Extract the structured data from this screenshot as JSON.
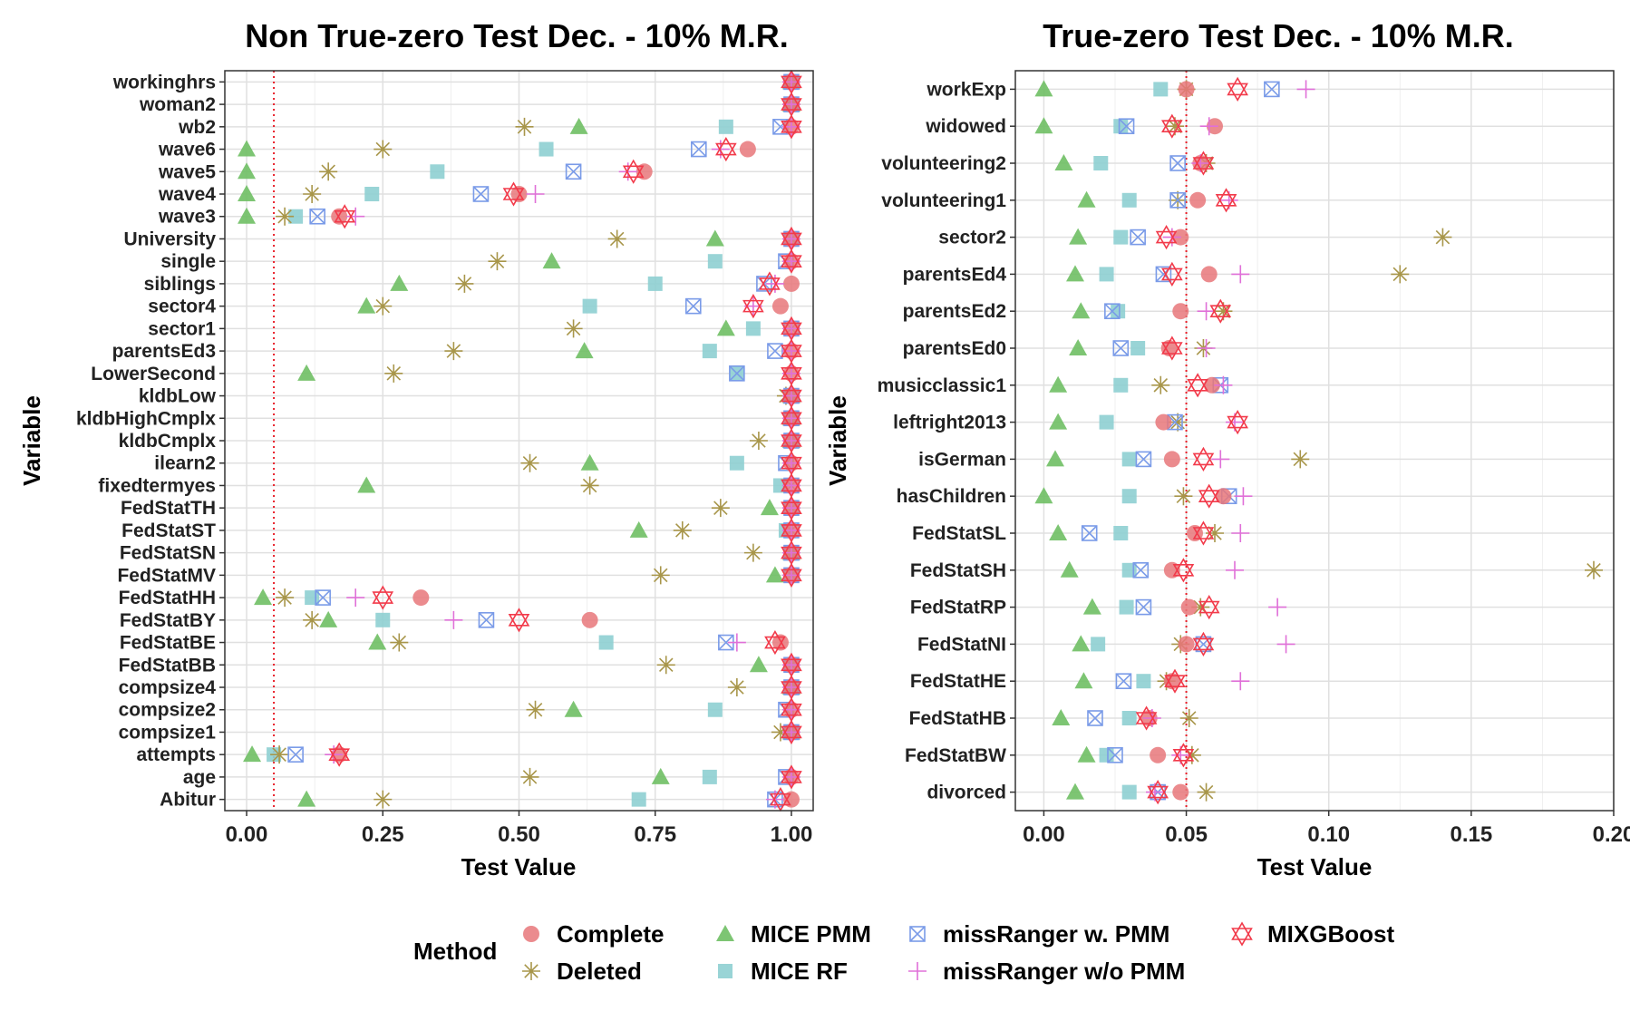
{
  "colors": {
    "complete": "#E8777A",
    "mice_pmm": "#6FBF64",
    "mice_rf": "#8ECFD2",
    "missranger_pmm": "#7A9BE8",
    "missranger_wo_pmm": "#E070D8",
    "deleted": "#A8964A",
    "mixgboost": "#F23A4A",
    "ref_line": "#E8202A"
  },
  "legend": {
    "title": "Method",
    "items": [
      {
        "key": "complete",
        "label": "Complete"
      },
      {
        "key": "deleted",
        "label": "Deleted"
      },
      {
        "key": "mice_pmm",
        "label": "MICE PMM"
      },
      {
        "key": "mice_rf",
        "label": "MICE RF"
      },
      {
        "key": "missranger_pmm",
        "label": "missRanger w. PMM"
      },
      {
        "key": "missranger_wo_pmm",
        "label": "missRanger w/o PMM"
      },
      {
        "key": "mixgboost",
        "label": "MIXGBoost"
      }
    ]
  },
  "chart_data": [
    {
      "type": "scatter",
      "title": "Non True-zero Test Dec. - 10% M.R.",
      "xlabel": "Test Value",
      "ylabel": "Variable",
      "xlim": [
        -0.04,
        1.04
      ],
      "xticks": [
        0,
        0.25,
        0.5,
        0.75,
        1
      ],
      "xtick_labels": [
        "0.00",
        "0.25",
        "0.50",
        "0.75",
        "1.00"
      ],
      "ref_line": 0.05,
      "grid": true,
      "categories": [
        "workinghrs",
        "woman2",
        "wb2",
        "wave6",
        "wave5",
        "wave4",
        "wave3",
        "University",
        "single",
        "siblings",
        "sector4",
        "sector1",
        "parentsEd3",
        "LowerSecond",
        "kldbLow",
        "kldbHighCmplx",
        "kldbCmplx",
        "ilearn2",
        "fixedtermyes",
        "FedStatTH",
        "FedStatST",
        "FedStatSN",
        "FedStatMV",
        "FedStatHH",
        "FedStatBY",
        "FedStatBE",
        "FedStatBB",
        "compsize4",
        "compsize2",
        "compsize1",
        "attempts",
        "age",
        "Abitur"
      ],
      "series": [
        {
          "key": "complete",
          "name": "Complete",
          "values": [
            1,
            1,
            1,
            0.92,
            0.73,
            0.5,
            0.17,
            1,
            1,
            1,
            0.98,
            1,
            1,
            1,
            1,
            1,
            1,
            1,
            1,
            1,
            1,
            1,
            1,
            0.32,
            0.63,
            0.98,
            1,
            1,
            1,
            1,
            0.17,
            1,
            1
          ]
        },
        {
          "key": "deleted",
          "name": "Deleted",
          "values": [
            1,
            1,
            0.51,
            0.25,
            0.15,
            0.12,
            0.07,
            0.68,
            0.46,
            0.4,
            0.25,
            0.6,
            0.38,
            0.27,
            0.99,
            1,
            0.94,
            0.52,
            0.63,
            0.87,
            0.8,
            0.93,
            0.76,
            0.07,
            0.12,
            0.28,
            0.77,
            0.9,
            0.53,
            0.98,
            0.06,
            0.52,
            0.25
          ]
        },
        {
          "key": "mice_pmm",
          "name": "MICE PMM",
          "values": [
            1,
            1,
            0.61,
            0,
            0,
            0,
            0,
            0.86,
            0.56,
            0.28,
            0.22,
            0.88,
            0.62,
            0.11,
            1,
            1,
            1,
            0.63,
            0.22,
            0.96,
            0.72,
            1,
            0.97,
            0.03,
            0.15,
            0.24,
            0.94,
            1,
            0.6,
            1,
            0.01,
            0.76,
            0.11
          ]
        },
        {
          "key": "mice_rf",
          "name": "MICE RF",
          "values": [
            1,
            1,
            0.88,
            0.55,
            0.35,
            0.23,
            0.09,
            1,
            0.86,
            0.75,
            0.63,
            0.93,
            0.85,
            0.9,
            1,
            1,
            1,
            0.9,
            0.98,
            1,
            0.99,
            1,
            1,
            0.12,
            0.25,
            0.66,
            1,
            1,
            0.86,
            1,
            0.05,
            0.85,
            0.72
          ]
        },
        {
          "key": "missranger_pmm",
          "name": "missRanger w. PMM",
          "values": [
            1,
            1,
            0.98,
            0.83,
            0.6,
            0.43,
            0.13,
            1,
            0.99,
            0.95,
            0.82,
            1,
            0.97,
            0.9,
            1,
            1,
            1,
            0.99,
            1,
            1,
            1,
            1,
            1,
            0.14,
            0.44,
            0.88,
            1,
            1,
            0.99,
            1,
            0.09,
            0.99,
            0.97
          ]
        },
        {
          "key": "missranger_wo_pmm",
          "name": "missRanger w/o PMM",
          "values": [
            1,
            1,
            1,
            0.87,
            0.7,
            0.53,
            0.2,
            1,
            1,
            0.97,
            0.93,
            1,
            1,
            1,
            1,
            1,
            1,
            1,
            1,
            1,
            1,
            1,
            1,
            0.2,
            0.38,
            0.9,
            1,
            1,
            1,
            1,
            0.16,
            1,
            0.97
          ]
        },
        {
          "key": "mixgboost",
          "name": "MIXGBoost",
          "values": [
            1,
            1,
            1,
            0.88,
            0.71,
            0.49,
            0.18,
            1,
            1,
            0.96,
            0.93,
            1,
            1,
            1,
            1,
            1,
            1,
            1,
            1,
            1,
            1,
            1,
            1,
            0.25,
            0.5,
            0.97,
            1,
            1,
            1,
            1,
            0.17,
            1,
            0.98
          ]
        }
      ]
    },
    {
      "type": "scatter",
      "title": "True-zero Test Dec. - 10% M.R.",
      "xlabel": "Test Value",
      "ylabel": "Variable",
      "xlim": [
        -0.01,
        0.2
      ],
      "xticks": [
        0,
        0.05,
        0.1,
        0.15,
        0.2
      ],
      "xtick_labels": [
        "0.00",
        "0.05",
        "0.10",
        "0.15",
        "0.20"
      ],
      "ref_line": 0.05,
      "grid": true,
      "categories": [
        "workExp",
        "widowed",
        "volunteering2",
        "volunteering1",
        "sector2",
        "parentsEd4",
        "parentsEd2",
        "parentsEd0",
        "musicclassic1",
        "leftright2013",
        "isGerman",
        "hasChildren",
        "FedStatSL",
        "FedStatSH",
        "FedStatRP",
        "FedStatNI",
        "FedStatHE",
        "FedStatHB",
        "FedStatBW",
        "divorced"
      ],
      "series": [
        {
          "key": "complete",
          "name": "Complete",
          "values": [
            0.05,
            0.06,
            0.055,
            0.054,
            0.048,
            0.058,
            0.048,
            0.044,
            0.059,
            0.042,
            0.045,
            0.063,
            0.053,
            0.045,
            0.051,
            0.05,
            0.045,
            0.037,
            0.04,
            0.048
          ]
        },
        {
          "key": "deleted",
          "name": "Deleted",
          "values": [
            0.05,
            0.046,
            0.057,
            0.047,
            0.14,
            0.125,
            0.063,
            0.056,
            0.041,
            0.047,
            0.09,
            0.049,
            0.06,
            0.193,
            0.055,
            0.048,
            0.043,
            0.051,
            0.052,
            0.057
          ]
        },
        {
          "key": "mice_pmm",
          "name": "MICE PMM",
          "values": [
            0,
            0,
            0.007,
            0.015,
            0.012,
            0.011,
            0.013,
            0.012,
            0.005,
            0.005,
            0.004,
            0,
            0.005,
            0.009,
            0.017,
            0.013,
            0.014,
            0.006,
            0.015,
            0.011
          ]
        },
        {
          "key": "mice_rf",
          "name": "MICE RF",
          "values": [
            0.041,
            0.027,
            0.02,
            0.03,
            0.027,
            0.022,
            0.026,
            0.033,
            0.027,
            0.022,
            0.03,
            0.03,
            0.027,
            0.03,
            0.029,
            0.019,
            0.035,
            0.03,
            0.022,
            0.03
          ]
        },
        {
          "key": "missranger_pmm",
          "name": "missRanger w. PMM",
          "values": [
            0.08,
            0.029,
            0.047,
            0.047,
            0.033,
            0.042,
            0.024,
            0.027,
            0.062,
            0.046,
            0.035,
            0.065,
            0.016,
            0.034,
            0.035,
            0.056,
            0.028,
            0.018,
            0.025,
            0.04
          ]
        },
        {
          "key": "missranger_wo_pmm",
          "name": "missRanger w/o PMM",
          "values": [
            0.092,
            0.058,
            0.055,
            0.065,
            0.045,
            0.069,
            0.057,
            0.057,
            0.063,
            0.067,
            0.062,
            0.07,
            0.069,
            0.067,
            0.082,
            0.085,
            0.069,
            0.038,
            0.048,
            0.039
          ]
        },
        {
          "key": "mixgboost",
          "name": "MIXGBoost",
          "values": [
            0.068,
            0.045,
            0.056,
            0.064,
            0.043,
            0.045,
            0.062,
            0.045,
            0.054,
            0.068,
            0.056,
            0.058,
            0.056,
            0.049,
            0.058,
            0.056,
            0.046,
            0.036,
            0.049,
            0.04
          ]
        }
      ]
    }
  ]
}
